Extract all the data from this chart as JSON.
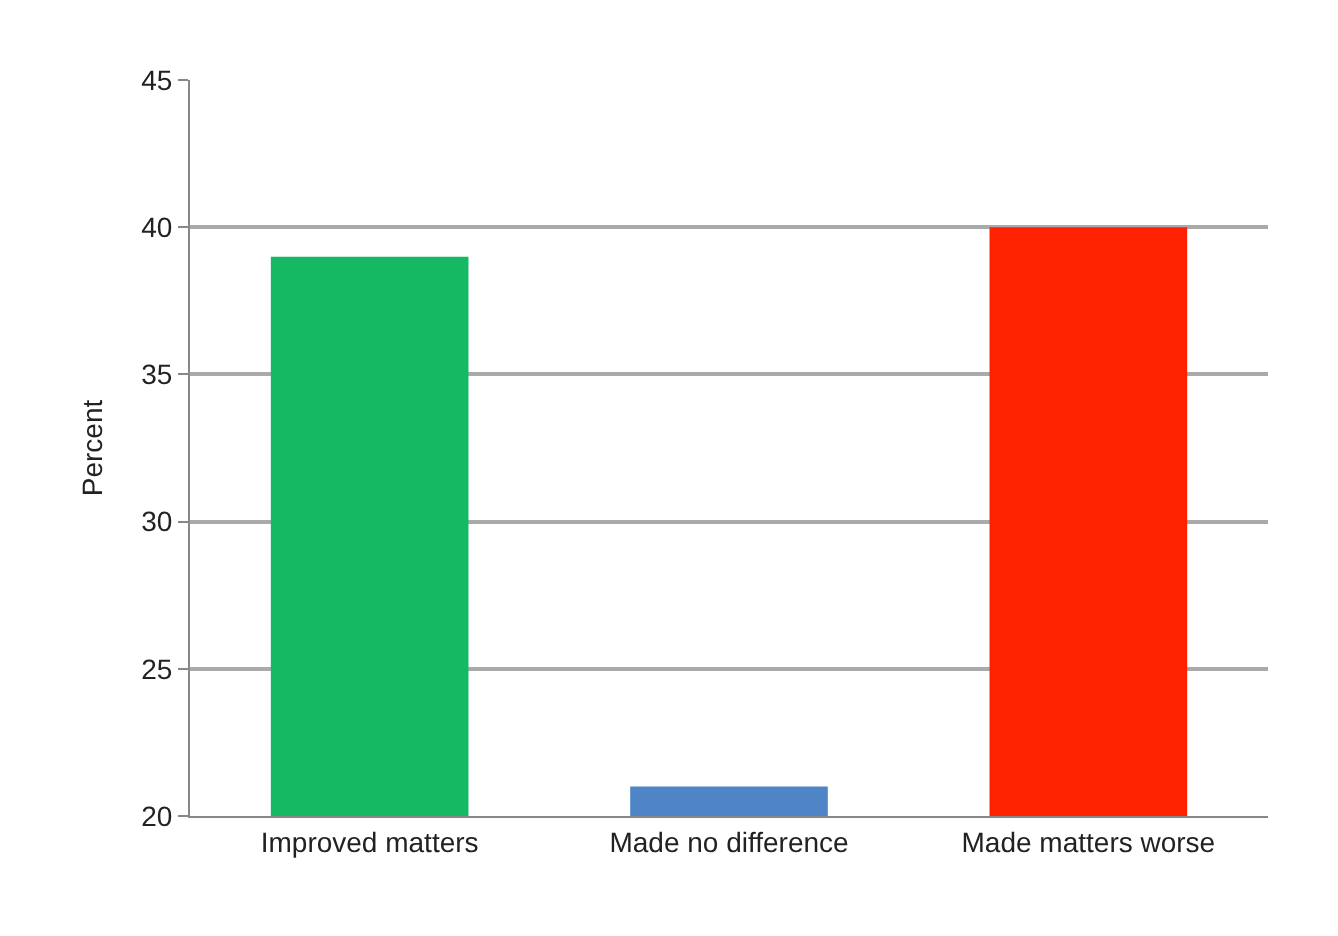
{
  "chart_data": {
    "type": "bar",
    "ylabel": "Percent",
    "categories": [
      "Improved matters",
      "Made no difference",
      "Made matters worse"
    ],
    "values": [
      39,
      21,
      40
    ],
    "colors": [
      "#15b964",
      "#4f85c6",
      "#fe2200"
    ],
    "ylim": [
      20,
      45
    ],
    "yticks": [
      20,
      25,
      30,
      35,
      40,
      45
    ],
    "grid": "y"
  }
}
